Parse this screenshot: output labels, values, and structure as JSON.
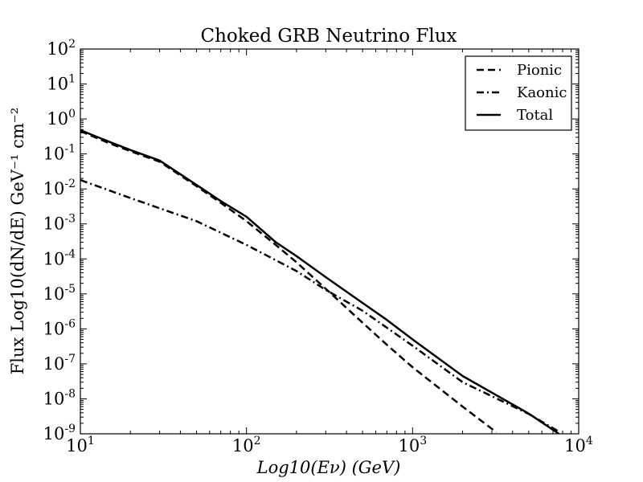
{
  "chart_data": {
    "type": "line",
    "title": "Choked GRB Neutrino Flux",
    "xlabel": "Log10(Eν) (GeV)",
    "ylabel": "Flux Log10(dN/dE) GeV⁻¹ cm⁻²",
    "xscale": "log",
    "yscale": "log",
    "xlim": [
      10,
      10000
    ],
    "ylim": [
      1e-09,
      100
    ],
    "x_ticks": [
      {
        "value": 10,
        "base": "10",
        "exp": "1"
      },
      {
        "value": 100,
        "base": "10",
        "exp": "2"
      },
      {
        "value": 1000,
        "base": "10",
        "exp": "3"
      },
      {
        "value": 10000,
        "base": "10",
        "exp": "4"
      }
    ],
    "y_ticks": [
      {
        "value": 1e-09,
        "base": "10",
        "exp": "-9"
      },
      {
        "value": 1e-08,
        "base": "10",
        "exp": "-8"
      },
      {
        "value": 1e-07,
        "base": "10",
        "exp": "-7"
      },
      {
        "value": 1e-06,
        "base": "10",
        "exp": "-6"
      },
      {
        "value": 1e-05,
        "base": "10",
        "exp": "-5"
      },
      {
        "value": 0.0001,
        "base": "10",
        "exp": "-4"
      },
      {
        "value": 0.001,
        "base": "10",
        "exp": "-3"
      },
      {
        "value": 0.01,
        "base": "10",
        "exp": "-2"
      },
      {
        "value": 0.1,
        "base": "10",
        "exp": "-1"
      },
      {
        "value": 1,
        "base": "10",
        "exp": "0"
      },
      {
        "value": 10,
        "base": "10",
        "exp": "1"
      },
      {
        "value": 100,
        "base": "10",
        "exp": "2"
      }
    ],
    "legend_position": "top-right",
    "series": [
      {
        "name": "Pionic",
        "style": "dashed",
        "color": "#000000",
        "x": [
          10,
          15,
          20,
          30,
          50,
          70,
          100,
          150,
          200,
          300,
          500,
          700,
          1000,
          2000,
          3200
        ],
        "y": [
          0.45,
          0.2,
          0.12,
          0.06,
          0.012,
          0.004,
          0.0012,
          0.00025,
          8e-05,
          1.4e-05,
          1.5e-06,
          3.5e-07,
          8e-08,
          6e-09,
          1.1e-09
        ]
      },
      {
        "name": "Kaonic",
        "style": "dashdot",
        "color": "#000000",
        "x": [
          10,
          20,
          50,
          100,
          200,
          300,
          500,
          1000,
          2000,
          5000,
          7500
        ],
        "y": [
          0.018,
          0.0055,
          0.0012,
          0.00025,
          4.5e-05,
          1.3e-05,
          3.3e-06,
          3.3e-07,
          3e-08,
          3.7e-09,
          1.2e-09
        ]
      },
      {
        "name": "Total",
        "style": "solid",
        "color": "#000000",
        "x": [
          10,
          15,
          20,
          30,
          50,
          70,
          100,
          150,
          200,
          300,
          500,
          700,
          1000,
          2000,
          5000,
          7600
        ],
        "y": [
          0.48,
          0.22,
          0.13,
          0.065,
          0.013,
          0.0045,
          0.0016,
          0.0003,
          0.00012,
          3e-05,
          5.5e-06,
          1.8e-06,
          5e-07,
          4.5e-08,
          3.8e-09,
          1e-09
        ]
      }
    ]
  }
}
